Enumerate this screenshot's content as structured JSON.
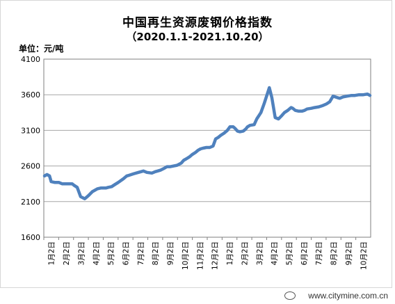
{
  "chart_data": {
    "type": "line",
    "title": "中国再生资源废钢价格指数",
    "subtitle": "（2020.1.1-2021.10.20）",
    "ylabel": "单位：元/吨",
    "ylim": [
      1600,
      4100
    ],
    "yticks": [
      1600,
      2100,
      2600,
      3100,
      3600,
      4100
    ],
    "grid": true,
    "legend": "none",
    "line_color": "#4f81bd",
    "xtick_labels": [
      "1月2日",
      "2月2日",
      "3月2日",
      "4月2日",
      "5月2日",
      "6月2日",
      "7月2日",
      "8月2日",
      "9月2日",
      "10月2日",
      "11月2日",
      "12月2日",
      "1月2日",
      "2月2日",
      "3月2日",
      "4月2日",
      "5月2日",
      "6月2日",
      "7月2日",
      "8月2日",
      "9月2日",
      "10月2日"
    ],
    "series": [
      {
        "x": [
          0,
          3,
          6,
          8,
          12,
          17,
          21,
          26,
          29,
          31,
          33,
          35,
          39,
          43,
          48,
          52,
          57,
          63,
          67,
          70,
          73,
          76,
          80,
          84,
          88,
          94,
          98,
          101,
          106,
          112,
          118,
          122,
          128,
          132,
          135,
          138,
          143,
          146,
          150,
          154,
          158,
          163,
          166,
          169,
          173,
          176,
          180,
          183,
          186,
          189,
          193,
          197,
          201,
          204,
          207,
          210,
          214,
          218,
          221,
          225,
          227,
          230,
          233,
          237,
          240,
          242,
          245,
          250,
          253,
          258,
          262,
          268,
          271,
          275,
          279,
          283,
          286,
          290,
          294,
          296,
          299,
          303,
          307,
          310,
          313,
          318,
          322,
          327,
          332,
          336,
          340,
          344,
          349,
          352,
          356,
          361,
          366,
          370,
          375,
          380,
          385,
          388
        ],
        "y": [
          2460,
          2480,
          2460,
          2380,
          2370,
          2370,
          2350,
          2350,
          2350,
          2350,
          2350,
          2330,
          2300,
          2170,
          2140,
          2180,
          2240,
          2280,
          2290,
          2290,
          2290,
          2300,
          2310,
          2340,
          2370,
          2420,
          2460,
          2470,
          2490,
          2510,
          2530,
          2510,
          2500,
          2520,
          2530,
          2540,
          2570,
          2590,
          2590,
          2600,
          2610,
          2640,
          2680,
          2700,
          2730,
          2760,
          2790,
          2820,
          2840,
          2850,
          2860,
          2860,
          2880,
          2980,
          3000,
          3030,
          3060,
          3100,
          3150,
          3150,
          3130,
          3090,
          3080,
          3090,
          3120,
          3150,
          3170,
          3180,
          3260,
          3350,
          3480,
          3700,
          3560,
          3280,
          3260,
          3310,
          3350,
          3380,
          3420,
          3410,
          3380,
          3370,
          3370,
          3380,
          3400,
          3410,
          3420,
          3430,
          3450,
          3470,
          3500,
          3580,
          3560,
          3550,
          3570,
          3580,
          3590,
          3590,
          3600,
          3600,
          3610,
          3590
        ]
      }
    ]
  },
  "watermark": "www.citymine.com.cn"
}
